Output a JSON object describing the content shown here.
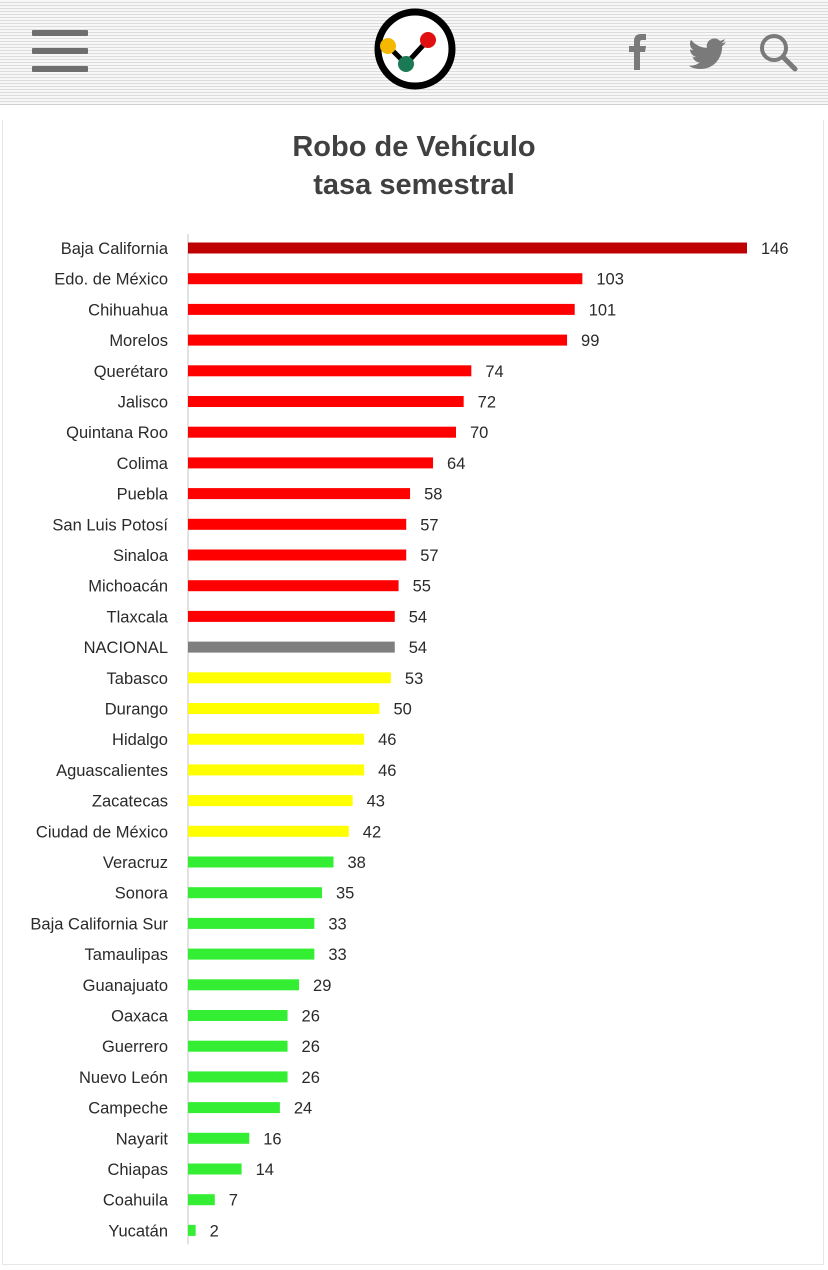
{
  "header": {
    "menu_icon": "hamburger-icon",
    "logo_icon": "chart-logo-icon",
    "social": [
      "facebook-icon",
      "twitter-icon",
      "search-icon"
    ]
  },
  "chart_data": {
    "type": "bar",
    "orientation": "horizontal",
    "title_line1": "Robo de Vehículo",
    "title_line2": "tasa semestral",
    "xlabel": "",
    "ylabel": "",
    "xlim": [
      0,
      146
    ],
    "grid": false,
    "categories": [
      "Baja California",
      "Edo. de México",
      "Chihuahua",
      "Morelos",
      "Querétaro",
      "Jalisco",
      "Quintana Roo",
      "Colima",
      "Puebla",
      "San Luis Potosí",
      "Sinaloa",
      "Michoacán",
      "Tlaxcala",
      "NACIONAL",
      "Tabasco",
      "Durango",
      "Hidalgo",
      "Aguascalientes",
      "Zacatecas",
      "Ciudad de México",
      "Veracruz",
      "Sonora",
      "Baja California Sur",
      "Tamaulipas",
      "Guanajuato",
      "Oaxaca",
      "Guerrero",
      "Nuevo León",
      "Campeche",
      "Nayarit",
      "Chiapas",
      "Coahuila",
      "Yucatán"
    ],
    "values": [
      146,
      103,
      101,
      99,
      74,
      72,
      70,
      64,
      58,
      57,
      57,
      55,
      54,
      54,
      53,
      50,
      46,
      46,
      43,
      42,
      38,
      35,
      33,
      33,
      29,
      26,
      26,
      26,
      24,
      16,
      14,
      7,
      2
    ],
    "colors": [
      "#c00000",
      "#ff0000",
      "#ff0000",
      "#ff0000",
      "#ff0000",
      "#ff0000",
      "#ff0000",
      "#ff0000",
      "#ff0000",
      "#ff0000",
      "#ff0000",
      "#ff0000",
      "#ff0000",
      "#7f7f7f",
      "#ffff00",
      "#ffff00",
      "#ffff00",
      "#ffff00",
      "#ffff00",
      "#ffff00",
      "#33ee33",
      "#33ee33",
      "#33ee33",
      "#33ee33",
      "#33ee33",
      "#33ee33",
      "#33ee33",
      "#33ee33",
      "#33ee33",
      "#33ee33",
      "#33ee33",
      "#33ee33",
      "#33ee33"
    ],
    "axis_color": "#d9d9d9"
  }
}
